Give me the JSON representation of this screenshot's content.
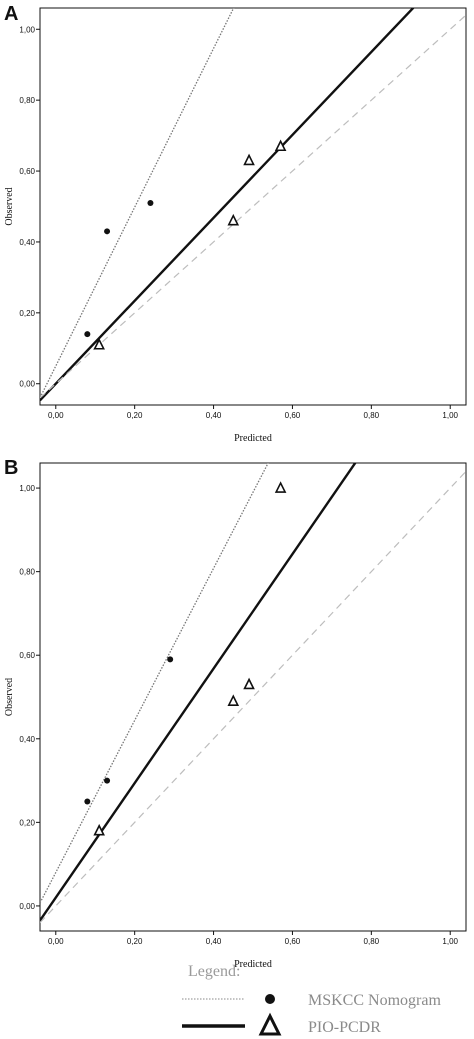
{
  "chart_data": [
    {
      "type": "scatter",
      "panel_label": "A",
      "xlabel": "Predicted",
      "ylabel": "Observed",
      "xlim": [
        -0.04,
        1.04
      ],
      "ylim": [
        -0.06,
        1.06
      ],
      "x_ticks": [
        "0,00",
        "0,20",
        "0,40",
        "0,60",
        "0,80",
        "1,00"
      ],
      "y_ticks": [
        "0,00",
        "0,20",
        "0,40",
        "0,60",
        "0,80",
        "1,00"
      ],
      "grid": false,
      "series": [
        {
          "marker": "dot",
          "points": [
            [
              0.08,
              0.14
            ],
            [
              0.13,
              0.43
            ],
            [
              0.24,
              0.51
            ]
          ]
        },
        {
          "marker": "triangle",
          "points": [
            [
              0.11,
              0.11
            ],
            [
              0.45,
              0.46
            ],
            [
              0.49,
              0.63
            ],
            [
              0.57,
              0.67
            ]
          ]
        }
      ],
      "lines": [
        {
          "style": "dotted",
          "slope": 2.24,
          "intercept": 0.05
        },
        {
          "style": "solid",
          "slope": 1.17,
          "intercept": 0.0
        },
        {
          "style": "dashed",
          "slope": 1.0,
          "intercept": 0.0
        }
      ]
    },
    {
      "type": "scatter",
      "panel_label": "B",
      "xlabel": "Predicted",
      "ylabel": "Observed",
      "xlim": [
        -0.04,
        1.04
      ],
      "ylim": [
        -0.06,
        1.06
      ],
      "x_ticks": [
        "0,00",
        "0,20",
        "0,40",
        "0,60",
        "0,80",
        "1,00"
      ],
      "y_ticks": [
        "0,00",
        "0,20",
        "0,40",
        "0,60",
        "0,80",
        "1,00"
      ],
      "grid": false,
      "series": [
        {
          "marker": "dot",
          "points": [
            [
              0.08,
              0.25
            ],
            [
              0.13,
              0.3
            ],
            [
              0.29,
              0.59
            ]
          ]
        },
        {
          "marker": "triangle",
          "points": [
            [
              0.11,
              0.18
            ],
            [
              0.45,
              0.49
            ],
            [
              0.49,
              0.53
            ],
            [
              0.57,
              1.0
            ]
          ]
        }
      ],
      "lines": [
        {
          "style": "dotted",
          "slope": 1.82,
          "intercept": 0.08
        },
        {
          "style": "solid",
          "slope": 1.37,
          "intercept": 0.02
        },
        {
          "style": "dashed",
          "slope": 1.0,
          "intercept": 0.0
        }
      ]
    }
  ],
  "legend": {
    "title": "Legend:",
    "items": [
      {
        "label": "MSKCC Nomogram",
        "line": "dotted",
        "marker": "dot"
      },
      {
        "label": "PIO-PCDR",
        "line": "solid",
        "marker": "triangle"
      }
    ]
  }
}
